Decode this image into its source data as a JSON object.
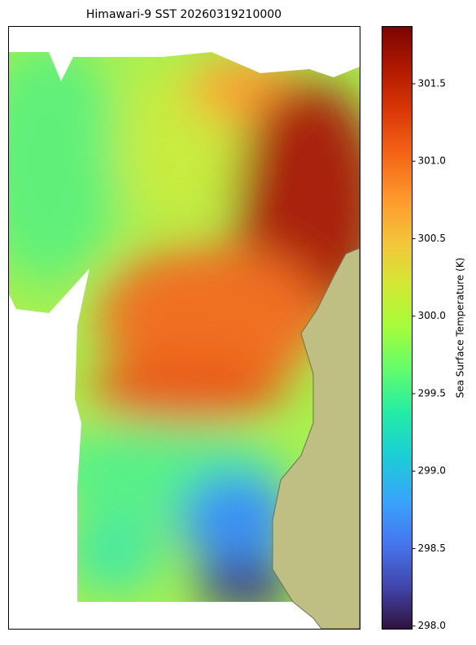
{
  "chart_data": {
    "type": "map",
    "title": "Himawari-9 SST 20260319210000",
    "colorbar": {
      "label": "Sea Surface Temperature (K)",
      "colormap": "turbo",
      "lim": [
        297.98,
        301.87
      ],
      "ticks": [
        {
          "value": 298,
          "label": "298.0"
        },
        298.5,
        {
          "value": 299,
          "label": "299.0"
        },
        299.5,
        {
          "value": 300,
          "label": "300.0"
        },
        300.5,
        {
          "value": 301,
          "label": "301.0"
        },
        301.5
      ]
    }
  }
}
